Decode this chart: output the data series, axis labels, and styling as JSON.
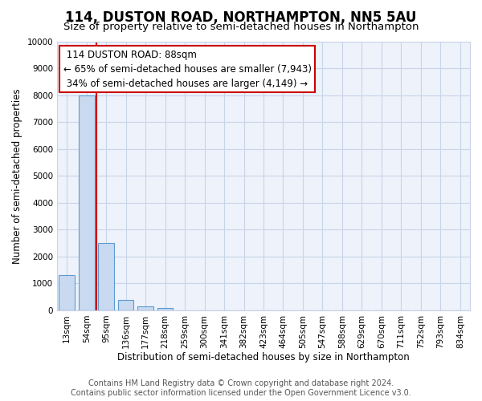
{
  "title": "114, DUSTON ROAD, NORTHAMPTON, NN5 5AU",
  "subtitle": "Size of property relative to semi-detached houses in Northampton",
  "xlabel": "Distribution of semi-detached houses by size in Northampton",
  "ylabel": "Number of semi-detached properties",
  "bar_labels": [
    "13sqm",
    "54sqm",
    "95sqm",
    "136sqm",
    "177sqm",
    "218sqm",
    "259sqm",
    "300sqm",
    "341sqm",
    "382sqm",
    "423sqm",
    "464sqm",
    "505sqm",
    "547sqm",
    "588sqm",
    "629sqm",
    "670sqm",
    "711sqm",
    "752sqm",
    "793sqm",
    "834sqm"
  ],
  "bar_values": [
    1300,
    8000,
    2500,
    400,
    150,
    100,
    10,
    5,
    2,
    1,
    0,
    0,
    0,
    0,
    0,
    0,
    0,
    0,
    0,
    0,
    0
  ],
  "bar_color": "#c8d9f0",
  "bar_edge_color": "#5b9bd5",
  "ylim": [
    0,
    10000
  ],
  "yticks": [
    0,
    1000,
    2000,
    3000,
    4000,
    5000,
    6000,
    7000,
    8000,
    9000,
    10000
  ],
  "property_label": "114 DUSTON ROAD: 88sqm",
  "pct_smaller": 65,
  "n_smaller": "7,943",
  "pct_larger": 34,
  "n_larger": "4,149",
  "vline_color": "#cc0000",
  "annotation_box_color": "#cc0000",
  "grid_color": "#c8d4e8",
  "background_color": "#eef2fa",
  "footer_line1": "Contains HM Land Registry data © Crown copyright and database right 2024.",
  "footer_line2": "Contains public sector information licensed under the Open Government Licence v3.0.",
  "title_fontsize": 12,
  "subtitle_fontsize": 9.5,
  "axis_label_fontsize": 8.5,
  "tick_fontsize": 7.5,
  "annotation_fontsize": 8.5,
  "footer_fontsize": 7
}
